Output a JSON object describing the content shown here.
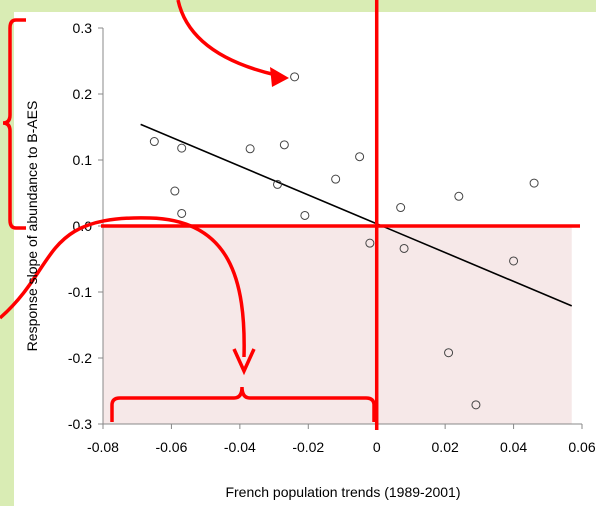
{
  "chart_data": {
    "type": "scatter",
    "title": "",
    "xlabel": "French population trends (1989-2001)",
    "ylabel": "Response slope of abundance to B-AES",
    "xlim": [
      -0.08,
      0.06
    ],
    "ylim": [
      -0.3,
      0.3
    ],
    "xticks": [
      -0.08,
      -0.06,
      -0.04,
      -0.02,
      0,
      0.02,
      0.04,
      0.06
    ],
    "xtick_labels": [
      "-0.08",
      "-0.06",
      "-0.04",
      "-0.02",
      "0",
      "0.02",
      "0.04",
      "0.06"
    ],
    "yticks": [
      -0.3,
      -0.2,
      -0.1,
      0,
      0.1,
      0.2,
      0.3
    ],
    "ytick_labels": [
      "-0.3",
      "-0.2",
      "-0.1",
      "0.0",
      "0.1",
      "0.2",
      "0.3"
    ],
    "grid": false,
    "legend": "none",
    "points": [
      {
        "x": -0.024,
        "y": 0.226
      },
      {
        "x": -0.065,
        "y": 0.128
      },
      {
        "x": -0.057,
        "y": 0.118
      },
      {
        "x": -0.037,
        "y": 0.117
      },
      {
        "x": -0.027,
        "y": 0.123
      },
      {
        "x": -0.005,
        "y": 0.105
      },
      {
        "x": -0.012,
        "y": 0.071
      },
      {
        "x": -0.029,
        "y": 0.063
      },
      {
        "x": -0.059,
        "y": 0.053
      },
      {
        "x": -0.057,
        "y": 0.019
      },
      {
        "x": -0.021,
        "y": 0.016
      },
      {
        "x": 0.007,
        "y": 0.028
      },
      {
        "x": 0.024,
        "y": 0.045
      },
      {
        "x": 0.046,
        "y": 0.065
      },
      {
        "x": -0.002,
        "y": -0.026
      },
      {
        "x": 0.008,
        "y": -0.034
      },
      {
        "x": 0.04,
        "y": -0.053
      },
      {
        "x": 0.021,
        "y": -0.192
      },
      {
        "x": 0.029,
        "y": -0.271
      }
    ],
    "trendline": {
      "x": [
        -0.069,
        0.057
      ],
      "y": [
        0.154,
        -0.121
      ]
    },
    "shaded_region": {
      "x": [
        -0.08,
        0.057
      ],
      "y": [
        -0.3,
        0
      ]
    },
    "colors": {
      "background": "#d9ecb4",
      "shading": "#f6e8e8",
      "annotation": "#ff0000",
      "trendline": "#000000",
      "marker": "#444444"
    }
  }
}
